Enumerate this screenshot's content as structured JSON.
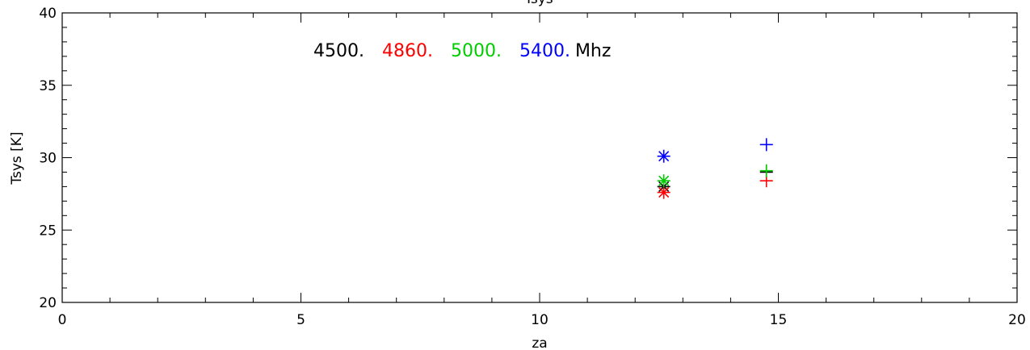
{
  "chart_data": {
    "type": "scatter",
    "title": "Tsys",
    "xlabel": "za",
    "ylabel": "Tsys [K]",
    "xlim": [
      0,
      20
    ],
    "ylim": [
      20,
      40
    ],
    "x_ticks": [
      0,
      5,
      10,
      15,
      20
    ],
    "y_ticks": [
      20,
      25,
      30,
      35,
      40
    ],
    "x_minor_step": 1,
    "y_minor_step": 1,
    "grid": false,
    "legend": {
      "placement": "top-left",
      "unit": "Mhz",
      "entries": [
        {
          "label": "4500.",
          "color": "#000000"
        },
        {
          "label": "4860.",
          "color": "#ff0000"
        },
        {
          "label": "5000.",
          "color": "#00cc00"
        },
        {
          "label": "5400.",
          "color": "#0000ff"
        }
      ]
    },
    "series": [
      {
        "color": "#000000",
        "points": [
          {
            "x": 12.6,
            "y": 28.0,
            "marker": "asterisk"
          },
          {
            "x": 14.75,
            "y": 29.0,
            "marker": "plus"
          }
        ]
      },
      {
        "color": "#ff0000",
        "points": [
          {
            "x": 12.6,
            "y": 27.6,
            "marker": "asterisk"
          },
          {
            "x": 14.75,
            "y": 28.4,
            "marker": "plus"
          }
        ]
      },
      {
        "color": "#00cc00",
        "points": [
          {
            "x": 12.6,
            "y": 28.4,
            "marker": "asterisk"
          },
          {
            "x": 14.75,
            "y": 29.1,
            "marker": "plus"
          }
        ]
      },
      {
        "color": "#0000ff",
        "points": [
          {
            "x": 12.6,
            "y": 30.1,
            "marker": "asterisk"
          },
          {
            "x": 14.75,
            "y": 30.9,
            "marker": "plus"
          }
        ]
      }
    ]
  }
}
